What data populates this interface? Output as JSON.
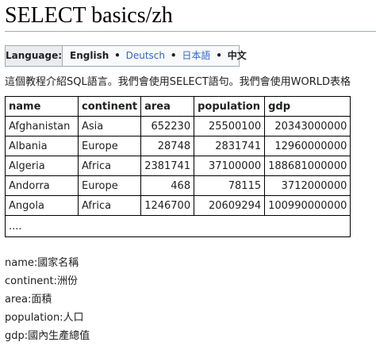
{
  "page": {
    "title": "SELECT basics/zh"
  },
  "language_bar": {
    "label": "Language:",
    "current": "English",
    "links": [
      "Deutsch",
      "日本語"
    ],
    "last": "中文",
    "separator": "•"
  },
  "intro": {
    "text": "這個教程介紹SQL語言。我們會使用SELECT語句。我們會使用WORLD表格"
  },
  "table": {
    "headers": [
      "name",
      "continent",
      "area",
      "population",
      "gdp"
    ],
    "rows": [
      [
        "Afghanistan",
        "Asia",
        "652230",
        "25500100",
        "20343000000"
      ],
      [
        "Albania",
        "Europe",
        "28748",
        "2831741",
        "12960000000"
      ],
      [
        "Algeria",
        "Africa",
        "2381741",
        "37100000",
        "188681000000"
      ],
      [
        "Andorra",
        "Europe",
        "468",
        "78115",
        "3712000000"
      ],
      [
        "Angola",
        "Africa",
        "1246700",
        "20609294",
        "100990000000"
      ]
    ],
    "ellipsis": "...."
  },
  "legend": [
    "name:國家名稱",
    "continent:洲份",
    "area:面積",
    "population:人口",
    "gdp:國內生產總值"
  ],
  "colors": {
    "link": "#3366cc",
    "rule": "#a2a9b1",
    "label_bg": "#eaecf0",
    "bar_bg": "#f8f9fa"
  }
}
